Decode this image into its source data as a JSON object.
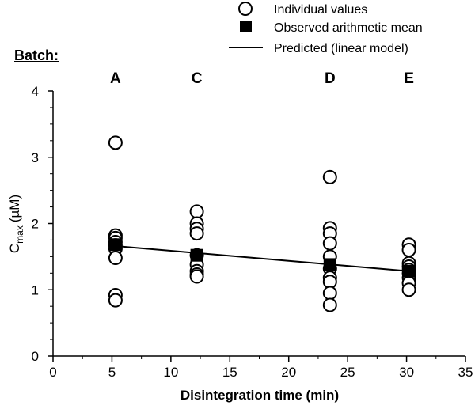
{
  "chart_data": {
    "type": "scatter",
    "title": "",
    "xlabel": "Disintegration  time (min)",
    "ylabel": {
      "main": "C",
      "subscript": "max",
      "unit": "(µM)"
    },
    "xlim": [
      0,
      35
    ],
    "ylim": [
      0,
      4
    ],
    "x_ticks": [
      0,
      5,
      10,
      15,
      20,
      25,
      30,
      35
    ],
    "y_ticks": [
      0,
      1,
      2,
      3,
      4
    ],
    "grid": false,
    "legend": [
      {
        "name": "Individual values",
        "marker": "open-circle"
      },
      {
        "name": "Observed arithmetic mean",
        "marker": "filled-square"
      },
      {
        "name": "Predicted (linear model)",
        "marker": "line"
      }
    ],
    "legend_placement": "top-right",
    "batch_label": "Batch:",
    "batches": [
      {
        "label": "A",
        "x": 5.3
      },
      {
        "label": "C",
        "x": 12.2
      },
      {
        "label": "D",
        "x": 23.5
      },
      {
        "label": "E",
        "x": 30.2
      }
    ],
    "series": [
      {
        "name": "Individual values",
        "points": [
          {
            "x": 5.3,
            "y": 3.22
          },
          {
            "x": 5.3,
            "y": 1.82
          },
          {
            "x": 5.3,
            "y": 1.78
          },
          {
            "x": 5.3,
            "y": 1.72
          },
          {
            "x": 5.3,
            "y": 1.67
          },
          {
            "x": 5.3,
            "y": 1.62
          },
          {
            "x": 5.3,
            "y": 1.48
          },
          {
            "x": 5.3,
            "y": 0.92
          },
          {
            "x": 5.3,
            "y": 0.84
          },
          {
            "x": 12.2,
            "y": 2.18
          },
          {
            "x": 12.2,
            "y": 2.0
          },
          {
            "x": 12.2,
            "y": 1.92
          },
          {
            "x": 12.2,
            "y": 1.85
          },
          {
            "x": 12.2,
            "y": 1.52
          },
          {
            "x": 12.2,
            "y": 1.38
          },
          {
            "x": 12.2,
            "y": 1.28
          },
          {
            "x": 12.2,
            "y": 1.23
          },
          {
            "x": 12.2,
            "y": 1.2
          },
          {
            "x": 23.5,
            "y": 2.7
          },
          {
            "x": 23.5,
            "y": 1.93
          },
          {
            "x": 23.5,
            "y": 1.85
          },
          {
            "x": 23.5,
            "y": 1.7
          },
          {
            "x": 23.5,
            "y": 1.5
          },
          {
            "x": 23.5,
            "y": 1.32
          },
          {
            "x": 23.5,
            "y": 1.18
          },
          {
            "x": 23.5,
            "y": 1.12
          },
          {
            "x": 23.5,
            "y": 0.95
          },
          {
            "x": 23.5,
            "y": 0.77
          },
          {
            "x": 30.2,
            "y": 1.68
          },
          {
            "x": 30.2,
            "y": 1.6
          },
          {
            "x": 30.2,
            "y": 1.4
          },
          {
            "x": 30.2,
            "y": 1.35
          },
          {
            "x": 30.2,
            "y": 1.3
          },
          {
            "x": 30.2,
            "y": 1.25
          },
          {
            "x": 30.2,
            "y": 1.18
          },
          {
            "x": 30.2,
            "y": 1.1
          },
          {
            "x": 30.2,
            "y": 1.0
          }
        ]
      },
      {
        "name": "Observed arithmetic mean",
        "points": [
          {
            "x": 5.3,
            "y": 1.68
          },
          {
            "x": 12.2,
            "y": 1.52
          },
          {
            "x": 23.5,
            "y": 1.38
          },
          {
            "x": 30.2,
            "y": 1.28
          }
        ]
      },
      {
        "name": "Predicted (linear model)",
        "points": [
          {
            "x": 5.3,
            "y": 1.66
          },
          {
            "x": 30.2,
            "y": 1.28
          }
        ]
      }
    ]
  }
}
